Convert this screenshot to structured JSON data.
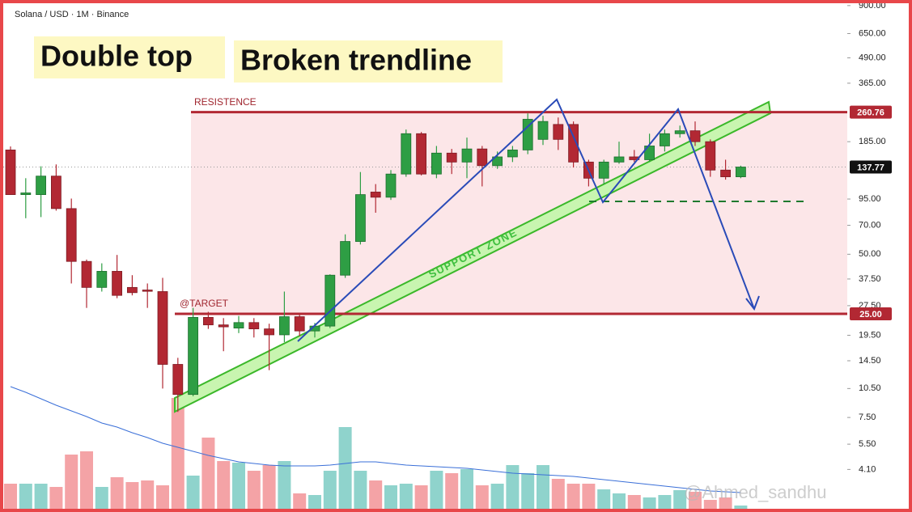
{
  "chart_data": {
    "type": "candlestick",
    "title": "Solana / USD · 1M · Binance",
    "log_scale": true,
    "ylim": [
      2.5,
      960
    ],
    "yticks": [
      {
        "value": 900,
        "label": "900.00"
      },
      {
        "value": 650,
        "label": "650.00"
      },
      {
        "value": 490,
        "label": "490.00"
      },
      {
        "value": 365,
        "label": "365.00"
      },
      {
        "value": 185,
        "label": "185.00"
      },
      {
        "value": 95,
        "label": "95.00"
      },
      {
        "value": 70,
        "label": "70.00"
      },
      {
        "value": 50,
        "label": "50.00"
      },
      {
        "value": 37.5,
        "label": "37.50"
      },
      {
        "value": 27.5,
        "label": "27.50"
      },
      {
        "value": 19.5,
        "label": "19.50"
      },
      {
        "value": 14.5,
        "label": "14.50"
      },
      {
        "value": 10.5,
        "label": "10.50"
      },
      {
        "value": 7.5,
        "label": "7.50"
      },
      {
        "value": 5.5,
        "label": "5.50"
      },
      {
        "value": 4.1,
        "label": "4.10"
      }
    ],
    "open": [
      168,
      100,
      100,
      124,
      85,
      46,
      34,
      41,
      34,
      33,
      32.4,
      13.9,
      9.8,
      24,
      22,
      21.2,
      22.6,
      21,
      19.6,
      24.2,
      20.5,
      21.7,
      39.2,
      58,
      103,
      97,
      127,
      203,
      127,
      162,
      146,
      170,
      140,
      155,
      168,
      190,
      226,
      226,
      146,
      121,
      146,
      155,
      150,
      176,
      203,
      210,
      185,
      133,
      123
    ],
    "high": [
      175,
      121,
      139,
      142,
      95.5,
      47,
      45,
      49.6,
      39.2,
      35.6,
      38,
      15,
      26.8,
      25.6,
      23.8,
      24.4,
      23.8,
      22.3,
      32.4,
      25.2,
      22.5,
      39.6,
      63,
      130,
      113,
      133,
      213,
      207,
      176,
      170,
      194,
      176,
      165,
      176,
      257,
      250,
      245,
      234,
      150,
      150,
      185,
      168,
      203,
      213,
      223,
      234,
      190,
      150,
      140
    ],
    "low": [
      100,
      76,
      77,
      83,
      35.6,
      26.8,
      32.4,
      30,
      31,
      26.8,
      10.5,
      8,
      9.6,
      21,
      16.2,
      20,
      19,
      13,
      18,
      19.3,
      19,
      21.2,
      38,
      56,
      81,
      94,
      123,
      125,
      121,
      127,
      121,
      110,
      135,
      146,
      160,
      178,
      168,
      137,
      110,
      113,
      143,
      146,
      146,
      165,
      194,
      176,
      123,
      119,
      121
    ],
    "close": [
      100,
      102,
      124,
      85,
      46,
      34,
      41,
      31,
      32,
      32.5,
      13.9,
      9.8,
      24,
      22,
      21.5,
      22.6,
      21,
      19.6,
      24.2,
      20.5,
      21.7,
      39.2,
      58,
      100,
      97,
      127,
      203,
      127,
      162,
      146,
      170,
      140,
      155,
      168,
      240,
      234,
      190,
      146,
      121,
      146,
      155,
      150,
      176,
      203,
      210,
      185,
      133,
      123,
      137.77
    ],
    "volume": [
      35,
      35,
      35,
      31,
      71,
      75,
      31,
      43,
      37,
      39,
      33,
      141,
      45,
      92,
      63,
      61,
      51,
      58,
      63,
      23,
      21,
      51,
      105,
      51,
      39,
      33,
      35,
      33,
      51,
      48,
      53,
      33,
      35,
      58,
      48,
      58,
      41,
      35,
      35,
      28,
      23,
      21,
      18,
      21,
      27,
      25,
      15,
      18,
      8
    ],
    "volume_ma": [
      155,
      148,
      140,
      132,
      125,
      118,
      110,
      105,
      98,
      92,
      85,
      80,
      75,
      70,
      66,
      62,
      60,
      58,
      57,
      57,
      57,
      58,
      60,
      62,
      62,
      60,
      58,
      57,
      56,
      55,
      54,
      52,
      50,
      48,
      47,
      46,
      45,
      44,
      42,
      40,
      38,
      36,
      34,
      32,
      30,
      28,
      26,
      25,
      24
    ],
    "up_color": "#2e9e44",
    "down_color": "#b22833",
    "volume_up_color": "#8fd3cc",
    "volume_down_color": "#f4a3a6",
    "ma_color": "#3a6fd8",
    "resistance": {
      "label": "RESISTENCE",
      "value": 260.76
    },
    "target": {
      "label": "@TARGET",
      "value": 25,
      "price_label": "25.00"
    },
    "last_price": 137.77,
    "annotations": {
      "double_top": "Double top",
      "broken_trendline": "Broken trendline",
      "support_zone": "SUPPORT ZONE"
    },
    "watermark": "@Ahmed_sandhu"
  }
}
